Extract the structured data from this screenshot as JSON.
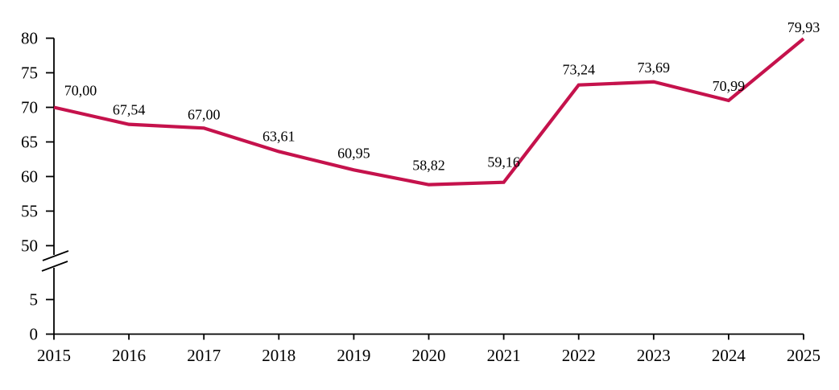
{
  "chart_data": {
    "type": "line",
    "title": "",
    "xlabel": "",
    "ylabel": "",
    "categories": [
      "2015",
      "2016",
      "2017",
      "2018",
      "2019",
      "2020",
      "2021",
      "2022",
      "2023",
      "2024",
      "2025"
    ],
    "x": [
      2015,
      2016,
      2017,
      2018,
      2019,
      2020,
      2021,
      2022,
      2023,
      2024,
      2025
    ],
    "series": [
      {
        "name": "value",
        "values": [
          70.0,
          67.54,
          67.0,
          63.61,
          60.95,
          58.82,
          59.16,
          73.24,
          73.69,
          70.99,
          79.93
        ],
        "color": "#C5124C"
      }
    ],
    "point_labels": [
      "70,00",
      "67,54",
      "67,00",
      "63,61",
      "60,95",
      "58,82",
      "59,16",
      "73,24",
      "73,69",
      "70,99",
      "79,93"
    ],
    "decimal_separator": ",",
    "y_ticks": [
      0,
      5,
      50,
      55,
      60,
      65,
      70,
      75,
      80
    ],
    "y_tick_labels": [
      "0",
      "5",
      "50",
      "55",
      "60",
      "65",
      "70",
      "75",
      "80"
    ],
    "axis_break": {
      "between": [
        5,
        50
      ]
    },
    "ylim_segments": [
      [
        0,
        5
      ],
      [
        50,
        80
      ]
    ],
    "grid": false,
    "legend": false,
    "axis_color": "#000000",
    "background_color": "#ffffff"
  }
}
